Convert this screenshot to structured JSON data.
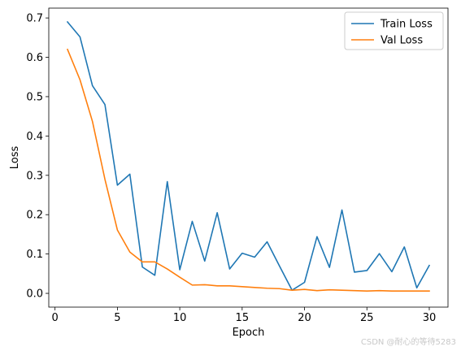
{
  "chart_data": {
    "type": "line",
    "title": "",
    "xlabel": "Epoch",
    "ylabel": "Loss",
    "xlim": [
      -0.5,
      31.5
    ],
    "ylim": [
      -0.035,
      0.725
    ],
    "xticks": [
      0,
      5,
      10,
      15,
      20,
      25,
      30
    ],
    "yticks": [
      0.0,
      0.1,
      0.2,
      0.3,
      0.4,
      0.5,
      0.6,
      0.7
    ],
    "grid": false,
    "legend_position": "top-right",
    "x": [
      1,
      2,
      3,
      4,
      5,
      6,
      7,
      8,
      9,
      10,
      11,
      12,
      13,
      14,
      15,
      16,
      17,
      18,
      19,
      20,
      21,
      22,
      23,
      24,
      25,
      26,
      27,
      28,
      29,
      30
    ],
    "series": [
      {
        "name": "Train Loss",
        "color": "#1f77b4",
        "values": [
          0.69,
          0.652,
          0.528,
          0.48,
          0.275,
          0.303,
          0.067,
          0.046,
          0.284,
          0.06,
          0.183,
          0.082,
          0.205,
          0.062,
          0.102,
          0.092,
          0.131,
          0.069,
          0.008,
          0.028,
          0.144,
          0.066,
          0.212,
          0.054,
          0.058,
          0.101,
          0.055,
          0.118,
          0.014,
          0.071
        ]
      },
      {
        "name": "Val Loss",
        "color": "#ff7f0e",
        "values": [
          0.62,
          0.543,
          0.437,
          0.29,
          0.161,
          0.105,
          0.08,
          0.08,
          0.062,
          0.041,
          0.021,
          0.022,
          0.019,
          0.019,
          0.017,
          0.015,
          0.013,
          0.012,
          0.008,
          0.01,
          0.007,
          0.009,
          0.008,
          0.007,
          0.006,
          0.007,
          0.006,
          0.006,
          0.006,
          0.006
        ]
      }
    ]
  },
  "watermark": "CSDN @耐心的等待5283"
}
